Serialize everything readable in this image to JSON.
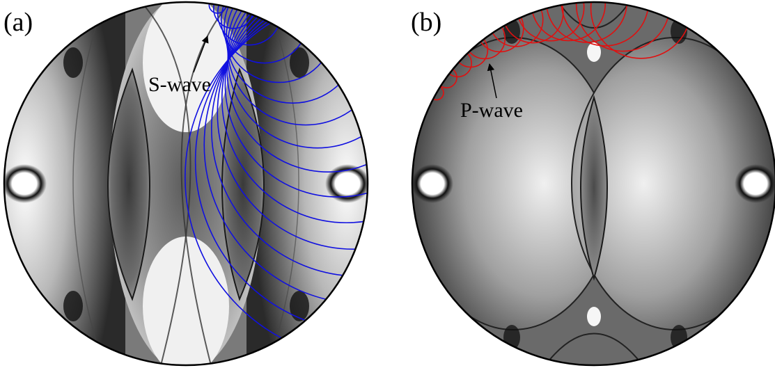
{
  "panels": [
    {
      "label": "(a)",
      "annotation": "S-wave",
      "wavefront_color": "#1010e0"
    },
    {
      "label": "(b)",
      "annotation": "P-wave",
      "wavefront_color": "#e01010"
    }
  ],
  "colors": {
    "background": "#ffffff",
    "outline": "#000000",
    "light": "#f4f4f4",
    "dark": "#262626"
  }
}
